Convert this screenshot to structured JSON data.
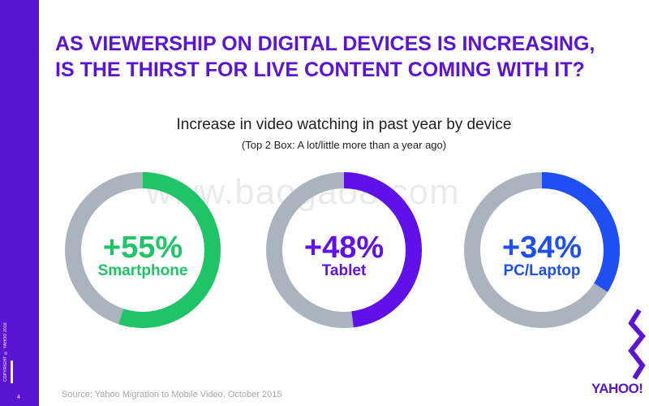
{
  "slide": {
    "title_line1": "AS VIEWERSHIP ON DIGITAL DEVICES IS INCREASING,",
    "title_line2": "IS THE THIRST FOR LIVE CONTENT COMING WITH IT?",
    "page_number": "4",
    "copyright": "COPYRIGHT © YAHOO 2016",
    "source": "Source: Yahoo Migration to Mobile Video, October 2015",
    "logo": "YAHOO!",
    "watermark": "www.baogao8.com",
    "accent_color": "#5c14d4"
  },
  "chart_data": {
    "type": "pie",
    "variant": "donut",
    "title": "Increase in video watching in past year by device",
    "subtitle": "(Top 2 Box: A lot/little more than a year ago)",
    "track_color": "#a9b4bf",
    "series": [
      {
        "name": "Smartphone",
        "value": 55,
        "label": "+55%",
        "color": "#1ec466"
      },
      {
        "name": "Tablet",
        "value": 48,
        "label": "+48%",
        "color": "#6010e8"
      },
      {
        "name": "PC/Laptop",
        "value": 34,
        "label": "+34%",
        "color": "#1f4ff2"
      }
    ]
  }
}
